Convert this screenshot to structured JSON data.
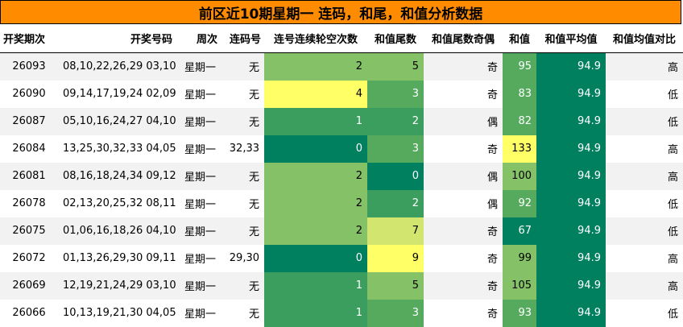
{
  "title": "前区近10期星期一 连码，和尾，和值分析数据",
  "headers": [
    "开奖期次",
    "开奖号码",
    "周次",
    "连码号",
    "连号连续轮空次数",
    "和值尾数",
    "和值尾数奇偶",
    "和值",
    "和值平均值",
    "和值均值对比"
  ],
  "colors": {
    "c_dark": "#00805f",
    "c_mid": "#3b9e5e",
    "c_green": "#55aa5e",
    "c_light": "#84c167",
    "c_lime": "#d2e66f",
    "c_yellow": "#ffff66",
    "c_pale": "#f5f97a",
    "c_avg": "#00805f"
  },
  "rows": [
    {
      "issue": "26093",
      "numbers": "08,10,22,26,29 03,10",
      "week": "星期一",
      "consec": "无",
      "gap": "2",
      "tail": "5",
      "parity": "奇",
      "sum": "95",
      "avg": "94.9",
      "cmp": "高",
      "gap_color": "#84c167",
      "tail_color": "#84c167",
      "sum_color": "#55aa5e"
    },
    {
      "issue": "26090",
      "numbers": "09,14,17,19,24 02,09",
      "week": "星期一",
      "consec": "无",
      "gap": "4",
      "tail": "3",
      "parity": "奇",
      "sum": "83",
      "avg": "94.9",
      "cmp": "低",
      "gap_color": "#ffff66",
      "tail_color": "#55aa5e",
      "sum_color": "#55aa5e"
    },
    {
      "issue": "26087",
      "numbers": "05,10,16,24,27 04,10",
      "week": "星期一",
      "consec": "无",
      "gap": "1",
      "tail": "2",
      "parity": "偶",
      "sum": "82",
      "avg": "94.9",
      "cmp": "低",
      "gap_color": "#3b9e5e",
      "tail_color": "#3b9e5e",
      "sum_color": "#55aa5e"
    },
    {
      "issue": "26084",
      "numbers": "13,25,30,32,33 04,05",
      "week": "星期一",
      "consec": "32,33",
      "gap": "0",
      "tail": "3",
      "parity": "奇",
      "sum": "133",
      "avg": "94.9",
      "cmp": "高",
      "gap_color": "#00805f",
      "tail_color": "#55aa5e",
      "sum_color": "#ffff66"
    },
    {
      "issue": "26081",
      "numbers": "08,16,18,24,34 09,12",
      "week": "星期一",
      "consec": "无",
      "gap": "2",
      "tail": "0",
      "parity": "偶",
      "sum": "100",
      "avg": "94.9",
      "cmp": "高",
      "gap_color": "#84c167",
      "tail_color": "#00805f",
      "sum_color": "#84c167"
    },
    {
      "issue": "26078",
      "numbers": "02,13,20,25,32 08,11",
      "week": "星期一",
      "consec": "无",
      "gap": "2",
      "tail": "2",
      "parity": "偶",
      "sum": "92",
      "avg": "94.9",
      "cmp": "低",
      "gap_color": "#84c167",
      "tail_color": "#3b9e5e",
      "sum_color": "#55aa5e"
    },
    {
      "issue": "26075",
      "numbers": "01,06,16,18,26 04,10",
      "week": "星期一",
      "consec": "无",
      "gap": "2",
      "tail": "7",
      "parity": "奇",
      "sum": "67",
      "avg": "94.9",
      "cmp": "低",
      "gap_color": "#84c167",
      "tail_color": "#d2e66f",
      "sum_color": "#00805f"
    },
    {
      "issue": "26072",
      "numbers": "01,13,26,29,30 09,11",
      "week": "星期一",
      "consec": "29,30",
      "gap": "0",
      "tail": "9",
      "parity": "奇",
      "sum": "99",
      "avg": "94.9",
      "cmp": "高",
      "gap_color": "#00805f",
      "tail_color": "#ffff66",
      "sum_color": "#84c167"
    },
    {
      "issue": "26069",
      "numbers": "12,19,21,24,29 03,10",
      "week": "星期一",
      "consec": "无",
      "gap": "1",
      "tail": "5",
      "parity": "奇",
      "sum": "105",
      "avg": "94.9",
      "cmp": "高",
      "gap_color": "#3b9e5e",
      "tail_color": "#84c167",
      "sum_color": "#84c167"
    },
    {
      "issue": "26066",
      "numbers": "10,13,19,21,30 04,05",
      "week": "星期一",
      "consec": "无",
      "gap": "1",
      "tail": "3",
      "parity": "奇",
      "sum": "93",
      "avg": "94.9",
      "cmp": "低",
      "gap_color": "#3b9e5e",
      "tail_color": "#55aa5e",
      "sum_color": "#55aa5e"
    }
  ]
}
